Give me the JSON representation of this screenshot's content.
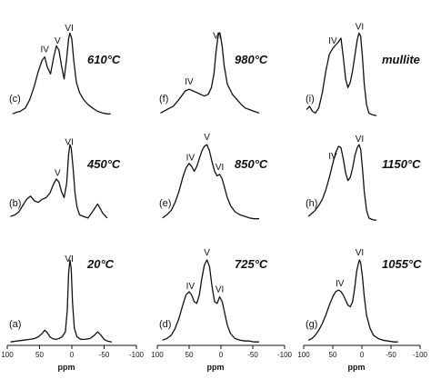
{
  "chart_data": {
    "type": "line",
    "layout": "3 columns x 3 rows of stacked spectra",
    "xaxis": {
      "label": "ppm",
      "reversed": true,
      "ticks": [
        100,
        50,
        0,
        -50,
        -100
      ],
      "range": [
        100,
        -100
      ]
    },
    "columns": [
      {
        "panels": [
          {
            "id": "(c)",
            "temperature": "610°C",
            "peak_labels": [
              {
                "text": "IV",
                "ppm": 42
              },
              {
                "text": "V",
                "ppm": 22
              },
              {
                "text": "VI",
                "ppm": 4
              }
            ],
            "x": [
              92,
              85,
              80,
              72,
              65,
              58,
              52,
              46,
              42,
              38,
              33,
              28,
              24,
              20,
              16,
              12,
              8,
              5,
              3,
              0,
              -3,
              -7,
              -12,
              -18,
              -25,
              -32,
              -40,
              -48,
              -55,
              -60
            ],
            "y": [
              0.05,
              0.07,
              0.08,
              0.12,
              0.22,
              0.38,
              0.55,
              0.68,
              0.72,
              0.6,
              0.52,
              0.72,
              0.85,
              0.8,
              0.62,
              0.46,
              0.7,
              0.94,
              1.0,
              0.93,
              0.68,
              0.42,
              0.3,
              0.22,
              0.16,
              0.12,
              0.08,
              0.06,
              0.05,
              0.05
            ]
          },
          {
            "id": "(b)",
            "temperature": "450°C",
            "peak_labels": [
              {
                "text": "V",
                "ppm": 22
              },
              {
                "text": "VI",
                "ppm": 4
              }
            ],
            "x": [
              95,
              88,
              82,
              76,
              70,
              64,
              58,
              52,
              46,
              40,
              34,
              28,
              24,
              20,
              16,
              12,
              8,
              5,
              3,
              1,
              -2,
              -5,
              -8,
              -12,
              -18,
              -25,
              -32,
              -40,
              -48,
              -55
            ],
            "y": [
              0.08,
              0.1,
              0.14,
              0.22,
              0.3,
              0.34,
              0.28,
              0.26,
              0.3,
              0.32,
              0.38,
              0.5,
              0.56,
              0.52,
              0.4,
              0.32,
              0.5,
              0.88,
              1.0,
              0.96,
              0.7,
              0.38,
              0.2,
              0.1,
              0.08,
              0.06,
              0.14,
              0.24,
              0.12,
              0.06
            ]
          },
          {
            "id": "(a)",
            "temperature": "20°C",
            "peak_labels": [
              {
                "text": "VI",
                "ppm": 4
              }
            ],
            "x": [
              95,
              85,
              75,
              65,
              58,
              52,
              46,
              42,
              38,
              34,
              30,
              25,
              20,
              15,
              10,
              7,
              5,
              3,
              1,
              -1,
              -4,
              -8,
              -14,
              -20,
              -28,
              -35,
              -40,
              -45,
              -50,
              -55,
              -62
            ],
            "y": [
              0.02,
              0.03,
              0.04,
              0.05,
              0.06,
              0.08,
              0.12,
              0.16,
              0.13,
              0.08,
              0.06,
              0.05,
              0.06,
              0.08,
              0.14,
              0.4,
              0.85,
              1.0,
              0.9,
              0.5,
              0.18,
              0.08,
              0.05,
              0.05,
              0.06,
              0.1,
              0.14,
              0.1,
              0.05,
              0.03,
              0.02
            ]
          }
        ]
      },
      {
        "panels": [
          {
            "id": "(f)",
            "temperature": "980°C",
            "peak_labels": [
              {
                "text": "IV",
                "ppm": 50
              },
              {
                "text": "VI",
                "ppm": 6
              }
            ],
            "x": [
              95,
              85,
              75,
              68,
              62,
              56,
              50,
              44,
              38,
              32,
              26,
              20,
              15,
              11,
              8,
              5,
              3,
              1,
              -2,
              -5,
              -10,
              -18,
              -25,
              -32,
              -38,
              -45,
              -52,
              -60
            ],
            "y": [
              0.06,
              0.1,
              0.14,
              0.2,
              0.26,
              0.32,
              0.34,
              0.32,
              0.3,
              0.28,
              0.26,
              0.28,
              0.36,
              0.52,
              0.76,
              0.94,
              1.0,
              0.98,
              0.84,
              0.62,
              0.4,
              0.28,
              0.22,
              0.16,
              0.12,
              0.1,
              0.08,
              0.06
            ]
          },
          {
            "id": "(e)",
            "temperature": "850°C",
            "peak_labels": [
              {
                "text": "IV",
                "ppm": 48
              },
              {
                "text": "V",
                "ppm": 22
              },
              {
                "text": "VI",
                "ppm": 2
              }
            ],
            "x": [
              92,
              85,
              78,
              72,
              66,
              60,
              55,
              50,
              46,
              42,
              38,
              34,
              30,
              26,
              22,
              18,
              14,
              10,
              6,
              2,
              -2,
              -6,
              -10,
              -15,
              -22,
              -30,
              -38,
              -45,
              -52,
              -60
            ],
            "y": [
              0.06,
              0.1,
              0.16,
              0.26,
              0.4,
              0.58,
              0.7,
              0.76,
              0.72,
              0.66,
              0.72,
              0.82,
              0.92,
              0.98,
              1.0,
              0.92,
              0.78,
              0.66,
              0.6,
              0.62,
              0.56,
              0.44,
              0.32,
              0.22,
              0.14,
              0.1,
              0.08,
              0.06,
              0.05,
              0.05
            ]
          },
          {
            "id": "(d)",
            "temperature": "725°C",
            "peak_labels": [
              {
                "text": "IV",
                "ppm": 48
              },
              {
                "text": "V",
                "ppm": 22
              },
              {
                "text": "VI",
                "ppm": 2
              }
            ],
            "x": [
              92,
              85,
              78,
              72,
              66,
              60,
              55,
              50,
              46,
              42,
              38,
              34,
              30,
              26,
              22,
              18,
              14,
              10,
              6,
              2,
              -2,
              -6,
              -10,
              -15,
              -22,
              -30,
              -38,
              -45,
              -52,
              -60
            ],
            "y": [
              0.04,
              0.06,
              0.1,
              0.18,
              0.3,
              0.46,
              0.58,
              0.62,
              0.58,
              0.5,
              0.48,
              0.58,
              0.78,
              0.94,
              1.0,
              0.92,
              0.68,
              0.5,
              0.48,
              0.56,
              0.5,
              0.36,
              0.22,
              0.12,
              0.06,
              0.04,
              0.03,
              0.03,
              0.02,
              0.02
            ]
          }
        ]
      },
      {
        "panels": [
          {
            "id": "(i)",
            "temperature": "mullite",
            "peak_labels": [
              {
                "text": "IV",
                "ppm": 50
              },
              {
                "text": "VI",
                "ppm": 4
              }
            ],
            "x": [
              95,
              90,
              85,
              80,
              74,
              68,
              62,
              56,
              50,
              45,
              40,
              36,
              32,
              28,
              24,
              20,
              16,
              12,
              8,
              5,
              2,
              -1,
              -4,
              -8,
              -12,
              -18,
              -25
            ],
            "y": [
              0.1,
              0.14,
              0.08,
              0.06,
              0.12,
              0.3,
              0.55,
              0.75,
              0.82,
              0.86,
              0.9,
              0.94,
              0.72,
              0.46,
              0.36,
              0.42,
              0.56,
              0.74,
              0.92,
              1.0,
              0.96,
              0.72,
              0.4,
              0.16,
              0.06,
              0.04,
              0.03
            ]
          },
          {
            "id": "(h)",
            "temperature": "1150°C",
            "peak_labels": [
              {
                "text": "IV",
                "ppm": 50
              },
              {
                "text": "VI",
                "ppm": 4
              }
            ],
            "x": [
              92,
              86,
              80,
              74,
              68,
              62,
              56,
              50,
              45,
              40,
              36,
              32,
              28,
              24,
              20,
              16,
              12,
              8,
              5,
              2,
              -1,
              -4,
              -8,
              -12,
              -18,
              -25
            ],
            "y": [
              0.08,
              0.12,
              0.16,
              0.22,
              0.3,
              0.42,
              0.58,
              0.76,
              0.9,
              0.98,
              0.96,
              0.82,
              0.64,
              0.54,
              0.58,
              0.7,
              0.86,
              0.96,
              1.0,
              0.94,
              0.7,
              0.4,
              0.16,
              0.06,
              0.04,
              0.03
            ]
          },
          {
            "id": "(g)",
            "temperature": "1055°C",
            "peak_labels": [
              {
                "text": "IV",
                "ppm": 38
              },
              {
                "text": "VI",
                "ppm": 4
              }
            ],
            "x": [
              92,
              86,
              80,
              74,
              68,
              62,
              56,
              50,
              45,
              40,
              36,
              32,
              28,
              24,
              20,
              16,
              12,
              9,
              6,
              4,
              2,
              -1,
              -4,
              -8,
              -14,
              -20,
              -28,
              -36,
              -45,
              -55,
              -62
            ],
            "y": [
              0.04,
              0.06,
              0.1,
              0.16,
              0.24,
              0.34,
              0.46,
              0.56,
              0.62,
              0.64,
              0.62,
              0.58,
              0.52,
              0.46,
              0.44,
              0.5,
              0.68,
              0.86,
              0.96,
              1.0,
              0.96,
              0.8,
              0.56,
              0.34,
              0.18,
              0.1,
              0.06,
              0.04,
              0.03,
              0.02,
              0.02
            ]
          }
        ]
      }
    ]
  }
}
